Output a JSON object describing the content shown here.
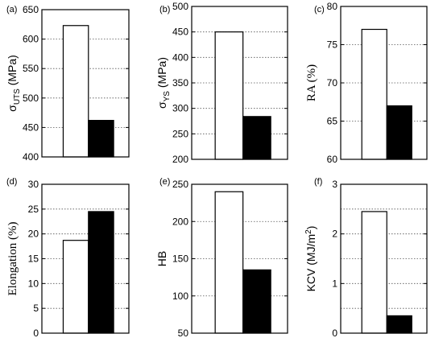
{
  "chart_data": [
    {
      "type": "bar",
      "panel_label": "(a)",
      "ylabel": {
        "main": "σ",
        "sub": "UTS",
        "rest": " (MPa)"
      },
      "ylabel_font": "sans",
      "ylim": [
        400,
        650
      ],
      "yticks": [
        "400",
        "450",
        "500",
        "550",
        "600",
        "650"
      ],
      "yticks_values": [
        400,
        450,
        500,
        550,
        600,
        650
      ],
      "grid_values": [
        450,
        500,
        550,
        600
      ],
      "values": [
        623,
        462
      ],
      "bar_colors": [
        "#ffffff",
        "#000000"
      ]
    },
    {
      "type": "bar",
      "panel_label": "(b)",
      "ylabel": {
        "main": "σ",
        "sub": "YS",
        "rest": " (MPa)"
      },
      "ylabel_font": "sans",
      "ylim": [
        200,
        500
      ],
      "yticks": [
        "200",
        "250",
        "300",
        "350",
        "400",
        "450",
        "500"
      ],
      "yticks_values": [
        200,
        250,
        300,
        350,
        400,
        450,
        500
      ],
      "grid_values": [
        250,
        300,
        350,
        400,
        450
      ],
      "values": [
        450,
        284
      ],
      "bar_colors": [
        "#ffffff",
        "#000000"
      ]
    },
    {
      "type": "bar",
      "panel_label": "(c)",
      "ylabel": {
        "main": "RA (%)",
        "sub": "",
        "rest": ""
      },
      "ylabel_font": "serif",
      "ylim": [
        60,
        80
      ],
      "yticks": [
        "60",
        "65",
        "70",
        "75",
        "80"
      ],
      "yticks_values": [
        60,
        65,
        70,
        75,
        80
      ],
      "grid_values": [
        65,
        70,
        75
      ],
      "values": [
        77,
        67
      ],
      "bar_colors": [
        "#ffffff",
        "#000000"
      ]
    },
    {
      "type": "bar",
      "panel_label": "(d)",
      "ylabel": {
        "main": "Elongation (%)",
        "sub": "",
        "rest": ""
      },
      "ylabel_font": "serif",
      "ylim": [
        0,
        30
      ],
      "yticks": [
        "0",
        "5",
        "10",
        "15",
        "20",
        "25",
        "30"
      ],
      "yticks_values": [
        0,
        5,
        10,
        15,
        20,
        25,
        30
      ],
      "grid_values": [
        5,
        10,
        15,
        20,
        25
      ],
      "values": [
        18.7,
        24.5
      ],
      "bar_colors": [
        "#ffffff",
        "#000000"
      ]
    },
    {
      "type": "bar",
      "panel_label": "(e)",
      "ylabel": {
        "main": "HB",
        "sub": "",
        "rest": ""
      },
      "ylabel_font": "sans",
      "ylim": [
        50,
        250
      ],
      "yticks": [
        "50",
        "100",
        "150",
        "200",
        "250"
      ],
      "yticks_values": [
        50,
        100,
        150,
        200,
        250
      ],
      "grid_values": [
        100,
        150,
        200
      ],
      "values": [
        240,
        135
      ],
      "bar_colors": [
        "#ffffff",
        "#000000"
      ]
    },
    {
      "type": "bar",
      "panel_label": "(f)",
      "ylabel": {
        "main": "KCV (MJ/m",
        "sup": "2",
        "rest": ")"
      },
      "ylabel_font": "sans",
      "ylim": [
        0,
        3
      ],
      "yticks": [
        "0",
        "1",
        "2",
        "3"
      ],
      "yticks_values": [
        0,
        1,
        2,
        3
      ],
      "grid_values": [
        0.5,
        1,
        1.5,
        2,
        2.5
      ],
      "values": [
        2.45,
        0.35
      ],
      "bar_colors": [
        "#ffffff",
        "#000000"
      ]
    }
  ]
}
